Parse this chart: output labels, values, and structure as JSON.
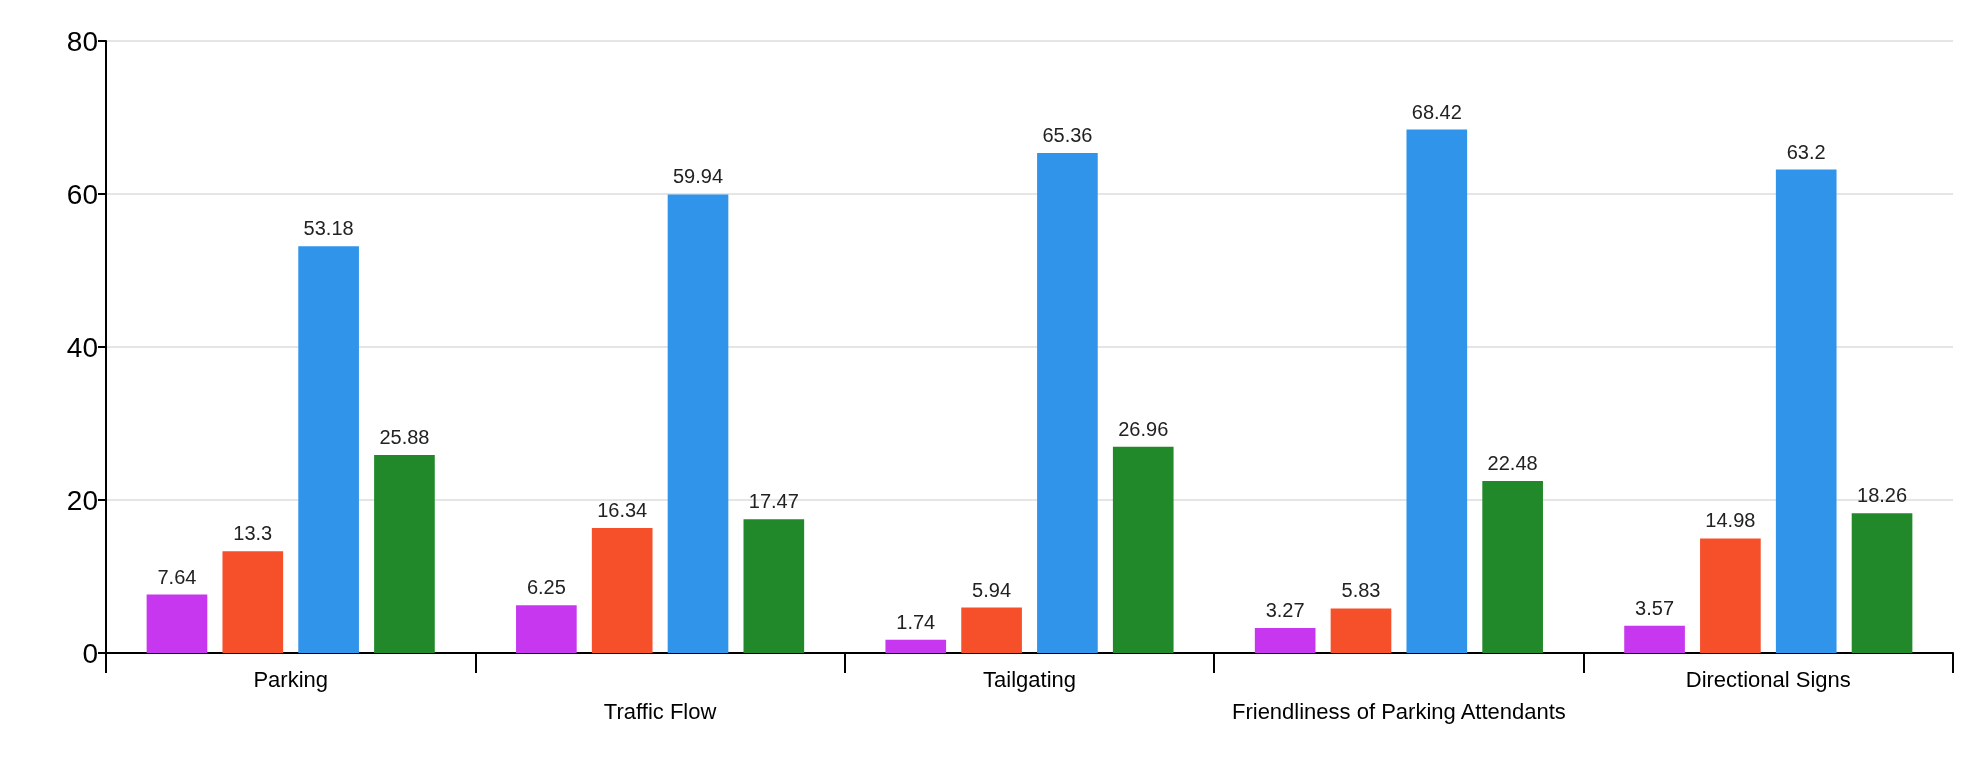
{
  "chart_data": {
    "type": "bar",
    "categories": [
      "Parking",
      "Traffic Flow",
      "Tailgating",
      "Friendliness of Parking Attendants",
      "Directional Signs"
    ],
    "series": [
      {
        "color": "#c837f0",
        "values": [
          7.64,
          6.25,
          1.74,
          3.27,
          3.57
        ]
      },
      {
        "color": "#f5502a",
        "values": [
          13.3,
          16.34,
          5.94,
          5.83,
          14.98
        ]
      },
      {
        "color": "#3094ea",
        "values": [
          53.18,
          59.94,
          65.36,
          68.42,
          63.2
        ]
      },
      {
        "color": "#21892a",
        "values": [
          25.88,
          17.47,
          26.96,
          22.48,
          18.26
        ]
      }
    ],
    "ylim": [
      0,
      80
    ],
    "yticks": [
      0,
      20,
      40,
      60,
      80
    ],
    "grid": "y",
    "data_labels": true
  }
}
